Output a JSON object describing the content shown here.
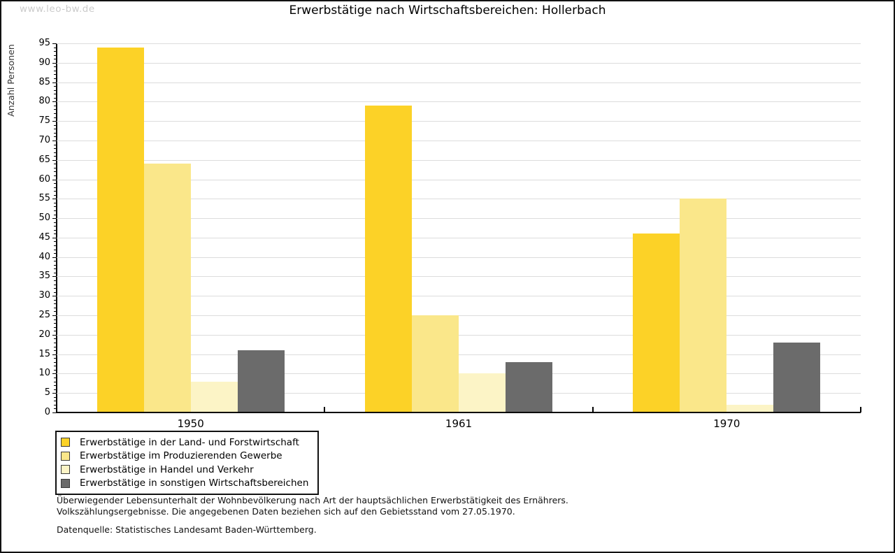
{
  "watermark": "www.leo-bw.de",
  "chart_data": {
    "type": "bar",
    "title": "Erwerbstätige nach Wirtschaftsbereichen: Hollerbach",
    "ylabel": "Anzahl Personen",
    "xlabel": "",
    "categories": [
      "1950",
      "1961",
      "1970"
    ],
    "series": [
      {
        "name": "Erwerbstätige in der Land- und Forstwirtschaft",
        "color": "#FCD227",
        "values": [
          94,
          79,
          46
        ]
      },
      {
        "name": "Erwerbstätige im Produzierenden Gewerbe",
        "color": "#FAE78A",
        "values": [
          64,
          25,
          55
        ]
      },
      {
        "name": "Erwerbstätige in Handel und Verkehr",
        "color": "#FCF4C6",
        "values": [
          8,
          10,
          2
        ]
      },
      {
        "name": "Erwerbstätige in sonstigen Wirtschaftsbereichen",
        "color": "#6B6B6B",
        "values": [
          16,
          13,
          18
        ]
      }
    ],
    "ylim": [
      0,
      95
    ],
    "ytick_step": 5,
    "ytick_minor_step": 1,
    "grid": true,
    "gridline_color": "#DCDCDC",
    "legend_position": "bottom-left",
    "bar_layout": "grouped-contiguous"
  },
  "footer": {
    "line1": "Überwiegender Lebensunterhalt der Wohnbevölkerung nach Art der hauptsächlichen Erwerbstätigkeit des Ernährers.",
    "line2": "Volkszählungsergebnisse. Die angegebenen Daten beziehen sich auf den Gebietsstand vom 27.05.1970.",
    "source": "Datenquelle: Statistisches Landesamt Baden-Württemberg."
  }
}
